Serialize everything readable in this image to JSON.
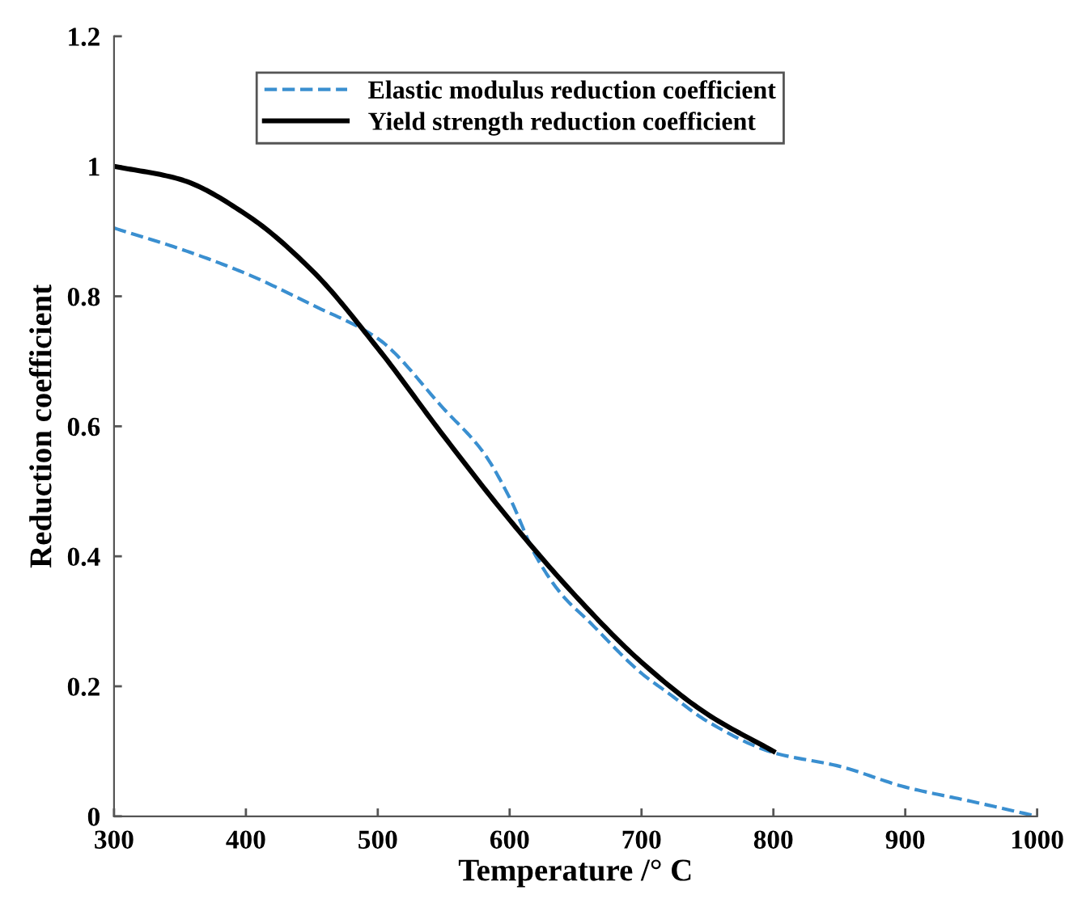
{
  "chart_data": {
    "type": "line",
    "xlabel": "Temperature /° C",
    "ylabel": "Reduction coefficient",
    "xlim": [
      300,
      1000
    ],
    "xticks": [
      300,
      400,
      500,
      600,
      700,
      800,
      900,
      1000
    ],
    "ylim": [
      0,
      1.2
    ],
    "yticks": [
      0,
      0.2,
      0.4,
      0.6,
      0.8,
      1,
      1.2
    ],
    "grid": false,
    "legend": "top",
    "marker": "none",
    "series": [
      {
        "name": "Elastic modulus reduction coefficient",
        "color": "#3a8fd0",
        "line_style": "dashed",
        "x": [
          300,
          350,
          400,
          450,
          500,
          550,
          580,
          600,
          620,
          640,
          660,
          700,
          720,
          750,
          800,
          850,
          900,
          950,
          1000
        ],
        "values": [
          0.905,
          0.873,
          0.835,
          0.787,
          0.735,
          0.627,
          0.56,
          0.49,
          0.4,
          0.34,
          0.3,
          0.22,
          0.19,
          0.146,
          0.098,
          0.077,
          0.045,
          0.023,
          0.0
        ]
      },
      {
        "name": "Yield strength reduction coefficient",
        "color": "#000000",
        "line_style": "solid",
        "x": [
          300,
          350,
          400,
          450,
          500,
          550,
          600,
          650,
          700,
          750,
          800
        ],
        "values": [
          1.0,
          0.98,
          0.926,
          0.84,
          0.72,
          0.585,
          0.456,
          0.339,
          0.237,
          0.157,
          0.1
        ]
      }
    ]
  }
}
